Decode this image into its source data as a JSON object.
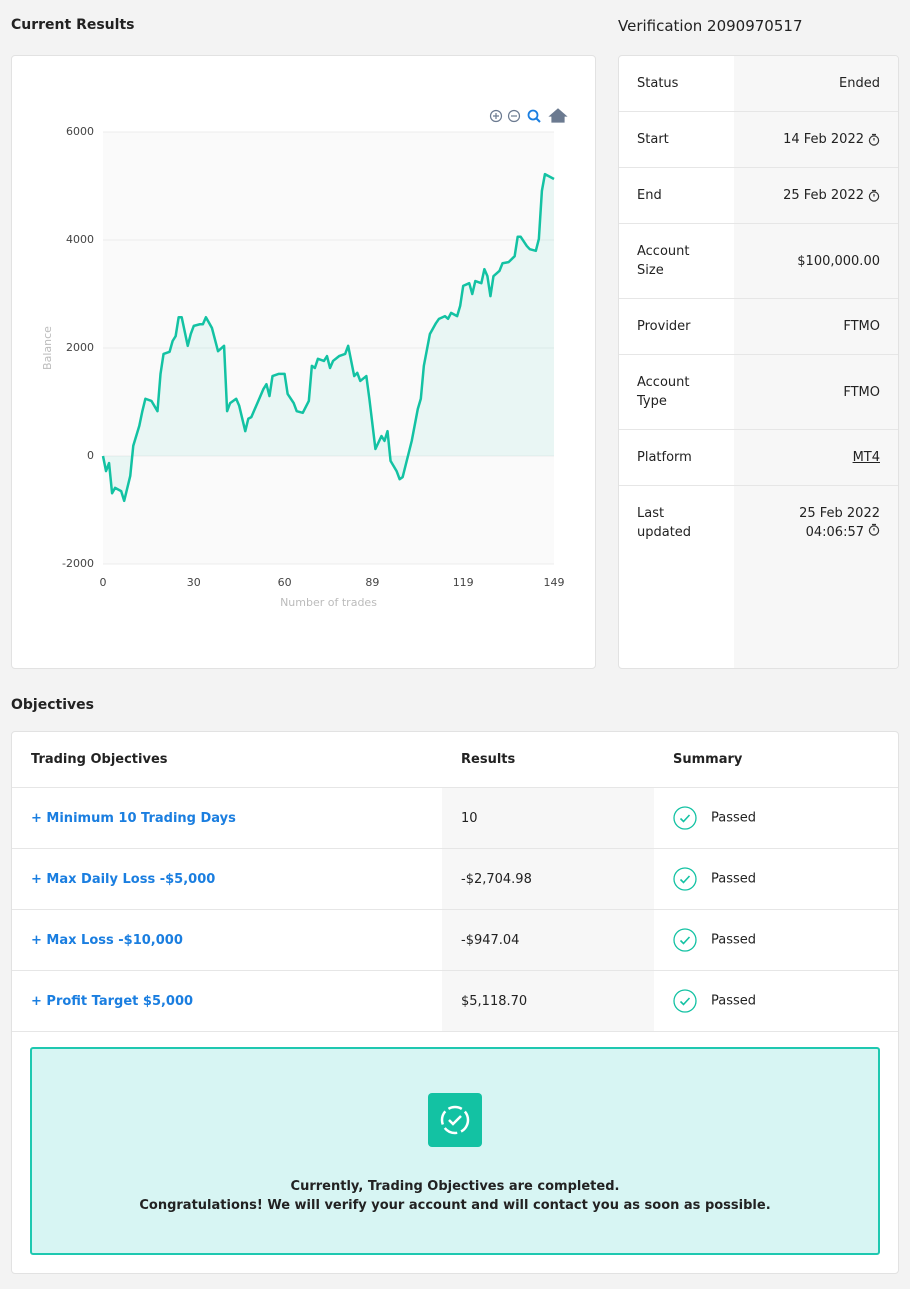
{
  "chart_data": {
    "type": "line",
    "title": "Current Results",
    "xlabel": "Number of trades",
    "ylabel": "Balance",
    "color": "#13c2a3",
    "x": [
      0,
      1,
      2,
      3,
      4,
      6,
      7,
      9,
      10,
      12,
      13,
      14,
      16,
      18,
      19,
      20,
      22,
      23,
      24,
      25,
      26,
      28,
      29,
      30,
      32,
      33,
      34,
      36,
      38,
      40,
      41,
      42,
      44,
      45,
      47,
      48,
      49,
      51,
      53,
      54,
      55,
      56,
      58,
      60,
      61,
      63,
      64,
      66,
      68,
      69,
      70,
      71,
      73,
      74,
      75,
      76,
      78,
      80,
      81,
      83,
      84,
      85,
      87,
      88,
      90,
      92,
      93,
      94,
      95,
      97,
      98,
      99,
      102,
      104,
      105,
      106,
      108,
      110,
      111,
      113,
      114,
      115,
      117,
      118,
      119,
      121,
      122,
      123,
      125,
      126,
      127,
      128,
      129,
      131,
      132,
      134,
      136,
      137,
      138,
      140,
      141,
      143,
      144,
      145,
      146,
      147,
      149
    ],
    "values": [
      0,
      -280,
      -130,
      -690,
      -590,
      -650,
      -830,
      -370,
      190,
      560,
      830,
      1060,
      1020,
      830,
      1520,
      1890,
      1930,
      2130,
      2220,
      2570,
      2570,
      2040,
      2260,
      2410,
      2440,
      2440,
      2570,
      2370,
      1940,
      2040,
      830,
      980,
      1060,
      930,
      460,
      690,
      720,
      980,
      1240,
      1330,
      1110,
      1480,
      1520,
      1520,
      1150,
      980,
      830,
      800,
      1020,
      1670,
      1630,
      1800,
      1760,
      1850,
      1630,
      1760,
      1850,
      1890,
      2040,
      1480,
      1540,
      1390,
      1480,
      1060,
      130,
      370,
      280,
      460,
      -90,
      -280,
      -430,
      -390,
      280,
      870,
      1060,
      1670,
      2260,
      2460,
      2540,
      2590,
      2540,
      2650,
      2590,
      2780,
      3150,
      3200,
      3000,
      3240,
      3200,
      3460,
      3330,
      2960,
      3330,
      3430,
      3570,
      3590,
      3700,
      4060,
      4060,
      3890,
      3830,
      3800,
      4020,
      4910,
      5220,
      5190,
      5130
    ],
    "xlim": [
      0,
      149
    ],
    "xticks": [
      0,
      30,
      60,
      89,
      119,
      149
    ],
    "ylim": [
      -2000,
      6000
    ],
    "yticks": [
      -2000,
      0,
      2000,
      4000,
      6000
    ],
    "grid": true
  },
  "verification": {
    "title": "Verification 2090970517",
    "rows": [
      {
        "label": "Status",
        "value": "Ended"
      },
      {
        "label": "Start",
        "value": "14 Feb 2022"
      },
      {
        "label": "End",
        "value": "25 Feb 2022"
      },
      {
        "label": "Account Size",
        "value": "$100,000.00"
      },
      {
        "label": "Provider",
        "value": "FTMO"
      },
      {
        "label": "Account Type",
        "value": "FTMO"
      },
      {
        "label": "Platform",
        "value": "MT4"
      },
      {
        "label": "Last updated",
        "value": [
          "25 Feb 2022",
          "04:06:57"
        ]
      }
    ]
  },
  "objectives": {
    "title": "Objectives",
    "header": [
      "Trading Objectives",
      "Results",
      "Summary"
    ],
    "rows": [
      [
        "+ Minimum 10 Trading Days",
        "10",
        "Passed"
      ],
      [
        "+ Max Daily Loss -$5,000",
        "-$2,704.98",
        "Passed"
      ],
      [
        "+ Max Loss -$10,000",
        "-$947.04",
        "Passed"
      ],
      [
        "+ Profit Target $5,000",
        "$5,118.70",
        "Passed"
      ]
    ],
    "message": [
      "Currently, Trading Objectives are completed.",
      "Congratulations! We will verify your account and will contact you as soon as possible."
    ]
  }
}
